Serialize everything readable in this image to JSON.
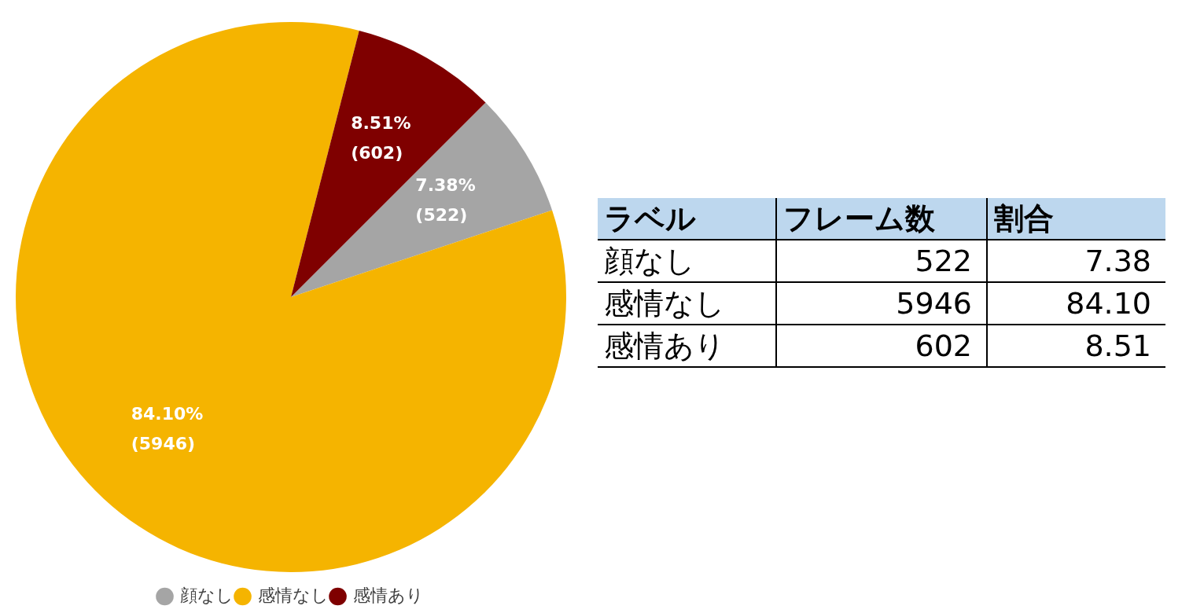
{
  "chart_data": [
    {
      "type": "pie",
      "categories": [
        "顔なし",
        "感情なし",
        "感情あり"
      ],
      "values": [
        522,
        5946,
        602
      ],
      "colors": [
        "#a5a5a5",
        "#f5b400",
        "#7f0000"
      ],
      "value_labels": [
        "7.38% (522)",
        "84.10% (5946)",
        "8.51% (602)"
      ],
      "legend": "bottom"
    },
    {
      "type": "other",
      "annotations": [
        "ラベル",
        "フレーム数",
        "割合",
        "顔なし",
        "522",
        "7.38",
        "感情なし",
        "5946",
        "84.10",
        "感情あり",
        "602",
        "8.51"
      ]
    }
  ]
}
